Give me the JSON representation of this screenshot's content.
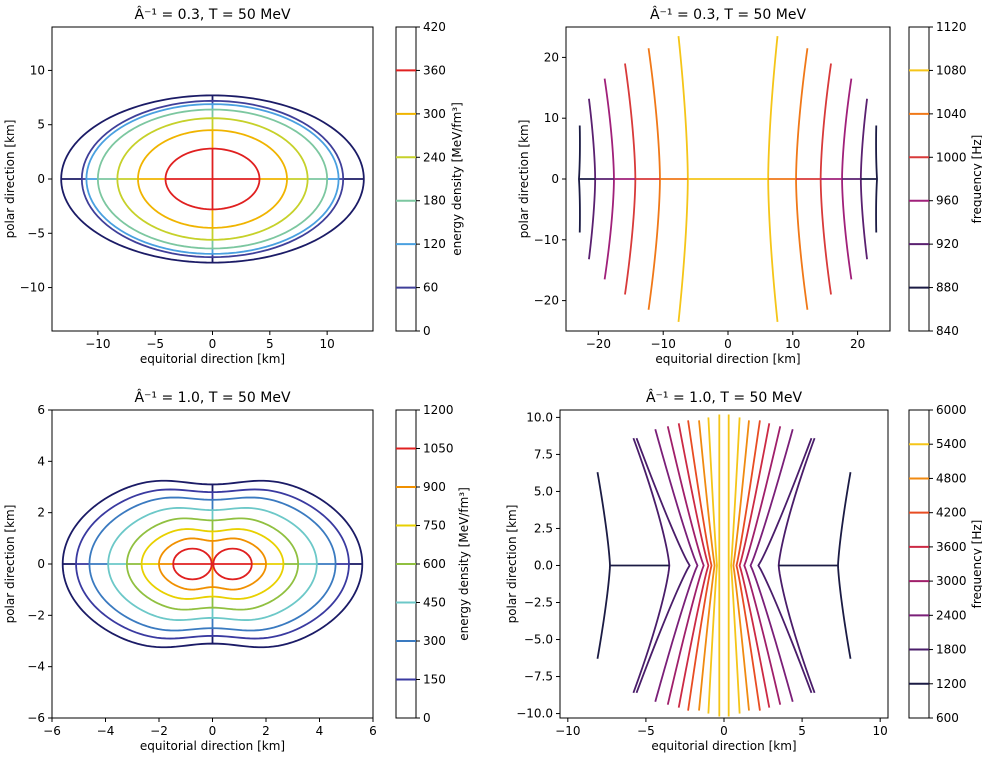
{
  "chart_data": [
    {
      "id": "tl",
      "type": "contour",
      "title": "Â⁻¹ = 0.3, T = 50 MeV",
      "xlabel": "equitorial direction [km]",
      "ylabel": "polar direction [km]",
      "xlim": [
        -14,
        14
      ],
      "ylim": [
        -14,
        14
      ],
      "xticks": [
        -10,
        -5,
        0,
        5,
        10
      ],
      "yticks": [
        -10,
        -5,
        0,
        5,
        10
      ],
      "colorbar": {
        "label": "energy density [MeV/fm³]",
        "ticks": [
          0,
          60,
          120,
          180,
          240,
          300,
          360,
          420
        ],
        "levels": [
          {
            "value": 60,
            "color": "#3f3f99"
          },
          {
            "value": 120,
            "color": "#4aa0e0"
          },
          {
            "value": 180,
            "color": "#7cc7a0"
          },
          {
            "value": 240,
            "color": "#c6d12a"
          },
          {
            "value": 300,
            "color": "#f0b400"
          },
          {
            "value": 360,
            "color": "#e02020"
          }
        ],
        "outer_color": "#1b1b66"
      },
      "contours": [
        {
          "level": 0,
          "a": 13.2,
          "b": 7.7,
          "color": "#1b1b66"
        },
        {
          "level": 60,
          "a": 11.4,
          "b": 7.2,
          "color": "#3f3f99"
        },
        {
          "level": 120,
          "a": 11.0,
          "b": 6.9,
          "color": "#4aa0e0"
        },
        {
          "level": 180,
          "a": 10.0,
          "b": 6.4,
          "color": "#7cc7a0"
        },
        {
          "level": 240,
          "a": 8.3,
          "b": 5.6,
          "color": "#c6d12a"
        },
        {
          "level": 300,
          "a": 6.5,
          "b": 4.5,
          "color": "#f0b400"
        },
        {
          "level": 360,
          "a": 4.1,
          "b": 2.8,
          "color": "#e02020"
        }
      ]
    },
    {
      "id": "tr",
      "type": "line",
      "title": "Â⁻¹ = 0.3, T = 50 MeV",
      "xlabel": "equitorial direction [km]",
      "ylabel": "polar direction [km]",
      "xlim": [
        -25,
        25
      ],
      "ylim": [
        -25,
        25
      ],
      "xticks": [
        -20,
        -10,
        0,
        10,
        20
      ],
      "yticks": [
        -20,
        -10,
        0,
        10,
        20
      ],
      "colorbar": {
        "label": "frequency [Hz]",
        "ticks": [
          840,
          880,
          920,
          960,
          1000,
          1040,
          1080,
          1120
        ],
        "levels": [
          {
            "value": 880,
            "color": "#1b1b44"
          },
          {
            "value": 920,
            "color": "#5a2070"
          },
          {
            "value": 960,
            "color": "#a0207a"
          },
          {
            "value": 1000,
            "color": "#d83a3a"
          },
          {
            "value": 1040,
            "color": "#f07818"
          },
          {
            "value": 1080,
            "color": "#f5c518"
          }
        ]
      },
      "lines": [
        {
          "x0": 6.2,
          "h": 23.5,
          "bulge": 0.9,
          "color": "#f5c518"
        },
        {
          "x0": 10.5,
          "h": 21.5,
          "bulge": 1.1,
          "color": "#f07818"
        },
        {
          "x0": 14.3,
          "h": 19.0,
          "bulge": 1.0,
          "color": "#d83a3a"
        },
        {
          "x0": 17.6,
          "h": 16.5,
          "bulge": 0.9,
          "color": "#a0207a"
        },
        {
          "x0": 20.5,
          "h": 13.2,
          "bulge": 0.6,
          "color": "#5a2070"
        },
        {
          "x0": 23.0,
          "h": 8.8,
          "bulge": 0.3,
          "color": "#1b1b44"
        }
      ]
    },
    {
      "id": "bl",
      "type": "contour",
      "title": "Â⁻¹ = 1.0, T = 50 MeV",
      "xlabel": "equitorial direction [km]",
      "ylabel": "polar direction [km]",
      "xlim": [
        -6,
        6
      ],
      "ylim": [
        -6,
        6
      ],
      "xticks": [
        -6,
        -4,
        -2,
        0,
        2,
        4,
        6
      ],
      "yticks": [
        -6,
        -4,
        -2,
        0,
        2,
        4,
        6
      ],
      "colorbar": {
        "label": "energy density [MeV/fm³]",
        "ticks": [
          0,
          150,
          300,
          450,
          600,
          750,
          900,
          1050,
          1200
        ],
        "levels": [
          {
            "value": 150,
            "color": "#3a3aa0"
          },
          {
            "value": 300,
            "color": "#3a7ac0"
          },
          {
            "value": 450,
            "color": "#6cc8c8"
          },
          {
            "value": 600,
            "color": "#90c040"
          },
          {
            "value": 750,
            "color": "#e8d000"
          },
          {
            "value": 900,
            "color": "#f09000"
          },
          {
            "value": 1050,
            "color": "#e02020"
          }
        ],
        "outer_color": "#1b1b66"
      },
      "contours": [
        {
          "level": 0,
          "R": 5.6,
          "H": 3.65,
          "W": 0.55,
          "color": "#1b1b66"
        },
        {
          "level": 150,
          "R": 5.1,
          "H": 3.25,
          "W": 0.45,
          "color": "#3a3aa0"
        },
        {
          "level": 300,
          "R": 4.6,
          "H": 2.9,
          "W": 0.4,
          "color": "#3a7ac0"
        },
        {
          "level": 450,
          "R": 3.9,
          "H": 2.45,
          "W": 0.35,
          "color": "#6cc8c8"
        },
        {
          "level": 600,
          "R": 3.2,
          "H": 2.0,
          "W": 0.3,
          "color": "#90c040"
        },
        {
          "level": 750,
          "R": 2.65,
          "H": 1.55,
          "W": 0.28,
          "color": "#e8d000"
        },
        {
          "level": 900,
          "R": 2.0,
          "H": 1.15,
          "W": 0.25,
          "color": "#f09000"
        }
      ],
      "lobes": [
        {
          "cx": -0.75,
          "rx": 0.72,
          "ry": 0.6,
          "color": "#e02020"
        },
        {
          "cx": 0.75,
          "rx": 0.72,
          "ry": 0.6,
          "color": "#e02020"
        }
      ]
    },
    {
      "id": "br",
      "type": "line",
      "title": "Â⁻¹ = 1.0, T = 50 MeV",
      "xlabel": "equitorial direction [km]",
      "ylabel": "polar direction [km]",
      "xlim": [
        -10.5,
        10.5
      ],
      "ylim": [
        -10.3,
        10.5
      ],
      "xticks": [
        -10,
        -5,
        0,
        5,
        10
      ],
      "yticks": [
        -10.0,
        -7.5,
        -5.0,
        -2.5,
        0.0,
        2.5,
        5.0,
        7.5,
        10.0
      ],
      "ytick_labels": [
        "−10.0",
        "−7.5",
        "−5.0",
        "−2.5",
        "0.0",
        "2.5",
        "5.0",
        "7.5",
        "10.0"
      ],
      "colorbar": {
        "label": "frequency [Hz]",
        "ticks": [
          600,
          1200,
          1800,
          2400,
          3000,
          3600,
          4200,
          4800,
          5400,
          6000
        ],
        "levels": [
          {
            "value": 1200,
            "color": "#1b1b44"
          },
          {
            "value": 1800,
            "color": "#4a1d6a"
          },
          {
            "value": 2400,
            "color": "#7a1f78"
          },
          {
            "value": 3000,
            "color": "#a01f6a"
          },
          {
            "value": 3600,
            "color": "#cc2a44"
          },
          {
            "value": 4200,
            "color": "#e84c22"
          },
          {
            "value": 4800,
            "color": "#f08a10"
          },
          {
            "value": 5400,
            "color": "#f5c518"
          }
        ]
      },
      "lines": [
        {
          "x0": 0.3,
          "xe": 0.3,
          "h": 10.2,
          "color": "#f5c518"
        },
        {
          "x0": 0.45,
          "xe": 1.0,
          "h": 10.0,
          "color": "#f5c518"
        },
        {
          "x0": 0.6,
          "xe": 1.6,
          "h": 9.8,
          "color": "#f08a10"
        },
        {
          "x0": 0.8,
          "xe": 2.3,
          "h": 9.8,
          "color": "#e84c22"
        },
        {
          "x0": 1.0,
          "xe": 2.9,
          "h": 9.6,
          "color": "#cc2a44"
        },
        {
          "x0": 1.3,
          "xe": 3.6,
          "h": 9.4,
          "color": "#a01f6a"
        },
        {
          "x0": 1.7,
          "xe": 4.4,
          "h": 9.2,
          "color": "#7a1f78"
        },
        {
          "x0": 2.2,
          "xe": 5.6,
          "h": 8.6,
          "color": "#4a1d6a"
        },
        {
          "x0": 3.5,
          "xe": 5.8,
          "h": 8.6,
          "color": "#4a1d6a",
          "mid_dip": true
        },
        {
          "x0": 7.3,
          "xe": 8.1,
          "h": 6.3,
          "color": "#1b1b44",
          "mid_dip": true
        }
      ]
    }
  ]
}
